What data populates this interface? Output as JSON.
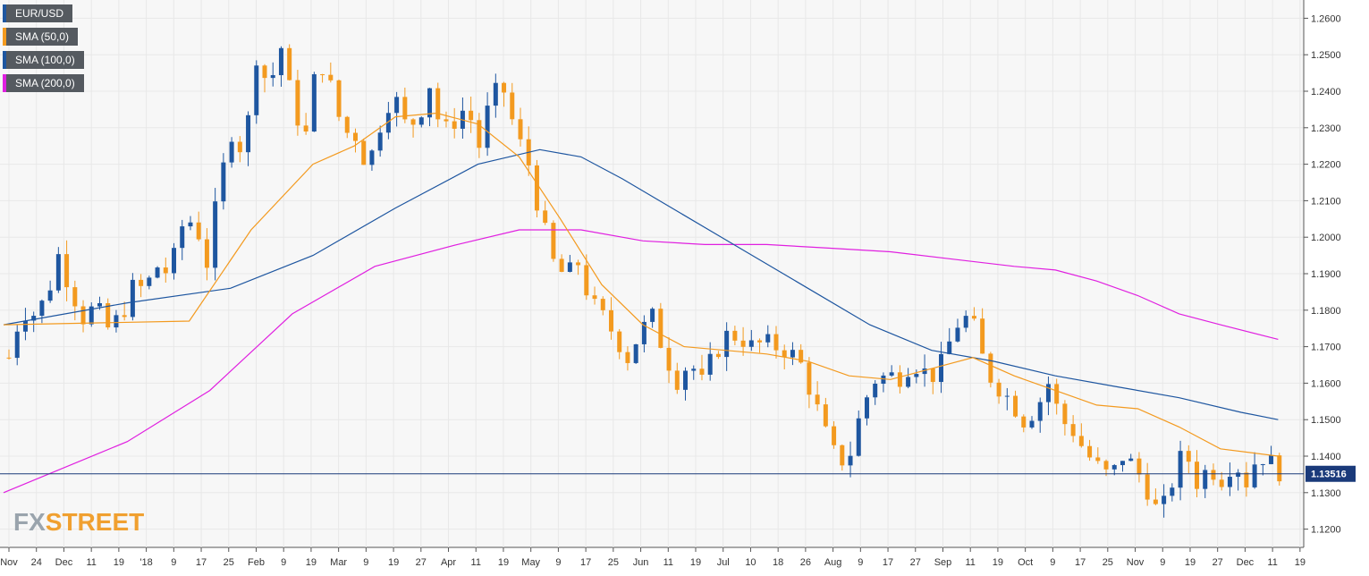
{
  "chart_data": {
    "type": "candlestick",
    "title": "",
    "symbol": "EUR/USD",
    "timeframe": "daily",
    "y_axis": {
      "min": 1.115,
      "max": 1.265,
      "ticks": [
        "1.2600",
        "1.2500",
        "1.2400",
        "1.2300",
        "1.2200",
        "1.2100",
        "1.2000",
        "1.1900",
        "1.1800",
        "1.1700",
        "1.1600",
        "1.1500",
        "1.1400",
        "1.1300",
        "1.1200"
      ],
      "position": "right"
    },
    "x_axis": {
      "tick_labels": [
        "Nov",
        "24",
        "Dec",
        "11",
        "19",
        "'18",
        "9",
        "17",
        "25",
        "Feb",
        "9",
        "19",
        "Mar",
        "9",
        "19",
        "27",
        "Apr",
        "11",
        "19",
        "May",
        "9",
        "17",
        "25",
        "Jun",
        "11",
        "19",
        "Jul",
        "10",
        "18",
        "26",
        "Aug",
        "9",
        "17",
        "27",
        "Sep",
        "11",
        "19",
        "Oct",
        "9",
        "17",
        "25",
        "Nov",
        "9",
        "19",
        "27",
        "Dec",
        "11",
        "19"
      ]
    },
    "last_price": {
      "value": 1.13516,
      "label": "1.13516"
    },
    "legend": [
      {
        "name": "EUR/USD",
        "color": "#1e56a0"
      },
      {
        "name": "SMA (50,0)",
        "color": "#f39a1f"
      },
      {
        "name": "SMA (100,0)",
        "color": "#1e56a0"
      },
      {
        "name": "SMA (200,0)",
        "color": "#e020e0"
      }
    ],
    "colors": {
      "up": "#1e56a0",
      "down": "#f39a1f",
      "grid": "#e8e8e8",
      "background": "#f7f7f7",
      "price_line": "#1a3a7a"
    },
    "close_path": [
      [
        0,
        1.167
      ],
      [
        6,
        1.18
      ],
      [
        12,
        1.179
      ],
      [
        18,
        1.183
      ],
      [
        24,
        1.195
      ],
      [
        30,
        1.186
      ],
      [
        36,
        1.178
      ],
      [
        42,
        1.181
      ],
      [
        48,
        1.175
      ],
      [
        54,
        1.178
      ],
      [
        60,
        1.186
      ],
      [
        66,
        1.186
      ],
      [
        72,
        1.192
      ],
      [
        78,
        1.19
      ],
      [
        84,
        1.203
      ],
      [
        90,
        1.205
      ],
      [
        96,
        1.193
      ],
      [
        102,
        1.214
      ],
      [
        108,
        1.229
      ],
      [
        114,
        1.223
      ],
      [
        120,
        1.25
      ],
      [
        126,
        1.241
      ],
      [
        132,
        1.252
      ],
      [
        138,
        1.235
      ],
      [
        144,
        1.228
      ],
      [
        150,
        1.25
      ],
      [
        156,
        1.241
      ],
      [
        162,
        1.229
      ],
      [
        168,
        1.228
      ],
      [
        174,
        1.219
      ],
      [
        180,
        1.231
      ],
      [
        186,
        1.24
      ],
      [
        192,
        1.231
      ],
      [
        198,
        1.232
      ],
      [
        204,
        1.242
      ],
      [
        210,
        1.228
      ],
      [
        216,
        1.232
      ],
      [
        222,
        1.236
      ],
      [
        228,
        1.225
      ],
      [
        234,
        1.239
      ],
      [
        240,
        1.24
      ],
      [
        246,
        1.228
      ],
      [
        252,
        1.22
      ],
      [
        258,
        1.205
      ],
      [
        264,
        1.193
      ],
      [
        270,
        1.189
      ],
      [
        276,
        1.193
      ],
      [
        282,
        1.182
      ],
      [
        288,
        1.178
      ],
      [
        294,
        1.173
      ],
      [
        300,
        1.167
      ],
      [
        306,
        1.174
      ],
      [
        312,
        1.178
      ],
      [
        318,
        1.168
      ],
      [
        324,
        1.161
      ],
      [
        330,
        1.166
      ],
      [
        336,
        1.16
      ],
      [
        342,
        1.168
      ],
      [
        348,
        1.173
      ],
      [
        354,
        1.173
      ],
      [
        360,
        1.17
      ],
      [
        366,
        1.171
      ],
      [
        372,
        1.17
      ],
      [
        378,
        1.169
      ],
      [
        384,
        1.165
      ],
      [
        390,
        1.156
      ],
      [
        396,
        1.146
      ],
      [
        402,
        1.138
      ],
      [
        408,
        1.141
      ],
      [
        414,
        1.154
      ],
      [
        420,
        1.161
      ],
      [
        426,
        1.162
      ],
      [
        432,
        1.162
      ],
      [
        438,
        1.166
      ],
      [
        444,
        1.163
      ],
      [
        450,
        1.162
      ],
      [
        456,
        1.171
      ],
      [
        462,
        1.179
      ],
      [
        468,
        1.175
      ],
      [
        474,
        1.163
      ],
      [
        480,
        1.159
      ],
      [
        486,
        1.155
      ],
      [
        492,
        1.15
      ],
      [
        498,
        1.153
      ],
      [
        504,
        1.16
      ],
      [
        510,
        1.15
      ],
      [
        516,
        1.147
      ],
      [
        522,
        1.141
      ],
      [
        528,
        1.137
      ],
      [
        534,
        1.134
      ],
      [
        540,
        1.14
      ],
      [
        546,
        1.137
      ],
      [
        552,
        1.131
      ],
      [
        558,
        1.123
      ],
      [
        564,
        1.133
      ],
      [
        570,
        1.142
      ],
      [
        576,
        1.133
      ],
      [
        582,
        1.137
      ],
      [
        588,
        1.134
      ],
      [
        594,
        1.139
      ],
      [
        600,
        1.133
      ],
      [
        606,
        1.141
      ],
      [
        612,
        1.138
      ],
      [
        618,
        1.135
      ]
    ],
    "sma_50": [
      [
        0,
        1.176
      ],
      [
        90,
        1.177
      ],
      [
        120,
        1.202
      ],
      [
        150,
        1.22
      ],
      [
        170,
        1.225
      ],
      [
        190,
        1.233
      ],
      [
        210,
        1.234
      ],
      [
        230,
        1.231
      ],
      [
        250,
        1.222
      ],
      [
        270,
        1.205
      ],
      [
        290,
        1.187
      ],
      [
        310,
        1.176
      ],
      [
        330,
        1.17
      ],
      [
        350,
        1.169
      ],
      [
        370,
        1.168
      ],
      [
        390,
        1.166
      ],
      [
        410,
        1.162
      ],
      [
        430,
        1.161
      ],
      [
        450,
        1.164
      ],
      [
        470,
        1.167
      ],
      [
        490,
        1.162
      ],
      [
        510,
        1.158
      ],
      [
        530,
        1.154
      ],
      [
        550,
        1.153
      ],
      [
        570,
        1.148
      ],
      [
        590,
        1.142
      ],
      [
        618,
        1.14
      ]
    ],
    "sma_100": [
      [
        0,
        1.176
      ],
      [
        60,
        1.182
      ],
      [
        110,
        1.186
      ],
      [
        150,
        1.195
      ],
      [
        190,
        1.208
      ],
      [
        230,
        1.22
      ],
      [
        260,
        1.224
      ],
      [
        280,
        1.222
      ],
      [
        300,
        1.216
      ],
      [
        330,
        1.206
      ],
      [
        360,
        1.196
      ],
      [
        390,
        1.186
      ],
      [
        420,
        1.176
      ],
      [
        450,
        1.169
      ],
      [
        480,
        1.166
      ],
      [
        510,
        1.162
      ],
      [
        540,
        1.159
      ],
      [
        570,
        1.156
      ],
      [
        600,
        1.152
      ],
      [
        618,
        1.15
      ]
    ],
    "sma_200": [
      [
        0,
        1.13
      ],
      [
        60,
        1.144
      ],
      [
        100,
        1.158
      ],
      [
        140,
        1.179
      ],
      [
        180,
        1.192
      ],
      [
        220,
        1.198
      ],
      [
        250,
        1.202
      ],
      [
        280,
        1.202
      ],
      [
        310,
        1.199
      ],
      [
        340,
        1.198
      ],
      [
        370,
        1.198
      ],
      [
        400,
        1.197
      ],
      [
        430,
        1.196
      ],
      [
        460,
        1.194
      ],
      [
        490,
        1.192
      ],
      [
        510,
        1.191
      ],
      [
        530,
        1.188
      ],
      [
        550,
        1.184
      ],
      [
        570,
        1.179
      ],
      [
        590,
        1.176
      ],
      [
        618,
        1.172
      ]
    ]
  },
  "branding": {
    "logo_fx": "FX",
    "logo_rest": "STREET"
  }
}
